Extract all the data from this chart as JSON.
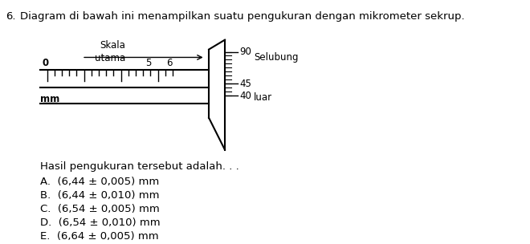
{
  "title_number": "6.",
  "title_text": "Diagram di bawah ini menampilkan suatu pengukuran dengan mikrometer sekrup.",
  "label_skala": "Skala",
  "label_utama": "utama",
  "label_selubung": "Selubung",
  "label_luar": "luar",
  "label_mm": "mm",
  "label_0": "0",
  "label_5": "5",
  "label_6": "6",
  "thimble_labels": [
    "90",
    "45",
    "40"
  ],
  "result_label": "Hasil pengukuran tersebut adalah. . .",
  "choices": [
    "A.  (6,44 ± 0,005) mm",
    "B.  (6,44 ± 0,010) mm",
    "C.  (6,54 ± 0,005) mm",
    "D.  (6,54 ± 0,010) mm",
    "E.  (6,64 ± 0,005) mm"
  ],
  "bg_color": "#ffffff",
  "text_color": "#000000",
  "line_color": "#000000"
}
